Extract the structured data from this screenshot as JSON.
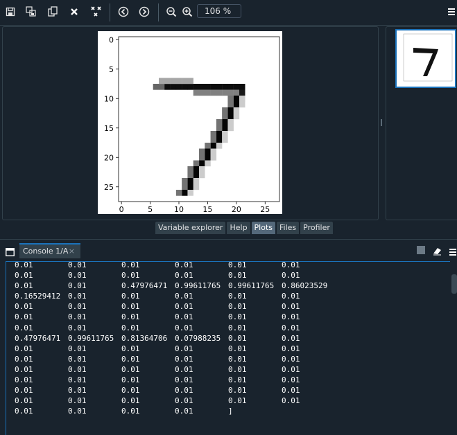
{
  "toolbar": {
    "zoom_value": "106 %",
    "icons": [
      "save-icon",
      "save-all-icon",
      "copy-icon",
      "close-icon",
      "close-all-icon",
      "back-icon",
      "forward-icon",
      "zoom-out-icon",
      "zoom-in-icon",
      "menu-icon"
    ]
  },
  "plot": {
    "x_ticks": [
      "0",
      "5",
      "10",
      "15",
      "20",
      "25"
    ],
    "y_ticks": [
      "0",
      "5",
      "10",
      "15",
      "20",
      "25"
    ]
  },
  "tabs": [
    {
      "label": "Variable explorer"
    },
    {
      "label": "Help"
    },
    {
      "label": "Plots"
    },
    {
      "label": "Files"
    },
    {
      "label": "Profiler"
    }
  ],
  "console": {
    "tab_label": "Console 1/A",
    "close_glyph": "×",
    "rows": [
      [
        "0.01",
        "0.01",
        "0.01",
        "0.01",
        "0.01",
        "0.01"
      ],
      [
        "0.01",
        "0.01",
        "0.01",
        "0.01",
        "0.01",
        "0.01"
      ],
      [
        "0.01",
        "0.01",
        "0.47976471",
        "0.99611765",
        "0.99611765",
        "0.86023529"
      ],
      [
        "0.16529412",
        "0.01",
        "0.01",
        "0.01",
        "0.01",
        "0.01"
      ],
      [
        "0.01",
        "0.01",
        "0.01",
        "0.01",
        "0.01",
        "0.01"
      ],
      [
        "0.01",
        "0.01",
        "0.01",
        "0.01",
        "0.01",
        "0.01"
      ],
      [
        "0.01",
        "0.01",
        "0.01",
        "0.01",
        "0.01",
        "0.01"
      ],
      [
        "0.47976471",
        "0.99611765",
        "0.81364706",
        "0.07988235",
        "0.01",
        "0.01"
      ],
      [
        "0.01",
        "0.01",
        "0.01",
        "0.01",
        "0.01",
        "0.01"
      ],
      [
        "0.01",
        "0.01",
        "0.01",
        "0.01",
        "0.01",
        "0.01"
      ],
      [
        "0.01",
        "0.01",
        "0.01",
        "0.01",
        "0.01",
        "0.01"
      ],
      [
        "0.01",
        "0.01",
        "0.01",
        "0.01",
        "0.01",
        "0.01"
      ],
      [
        "0.01",
        "0.01",
        "0.01",
        "0.01",
        "0.01",
        "0.01"
      ],
      [
        "0.01",
        "0.01",
        "0.01",
        "0.01",
        "0.01",
        "0.01"
      ],
      [
        "0.01",
        "0.01",
        "0.01",
        "0.01",
        "]",
        ""
      ]
    ]
  }
}
